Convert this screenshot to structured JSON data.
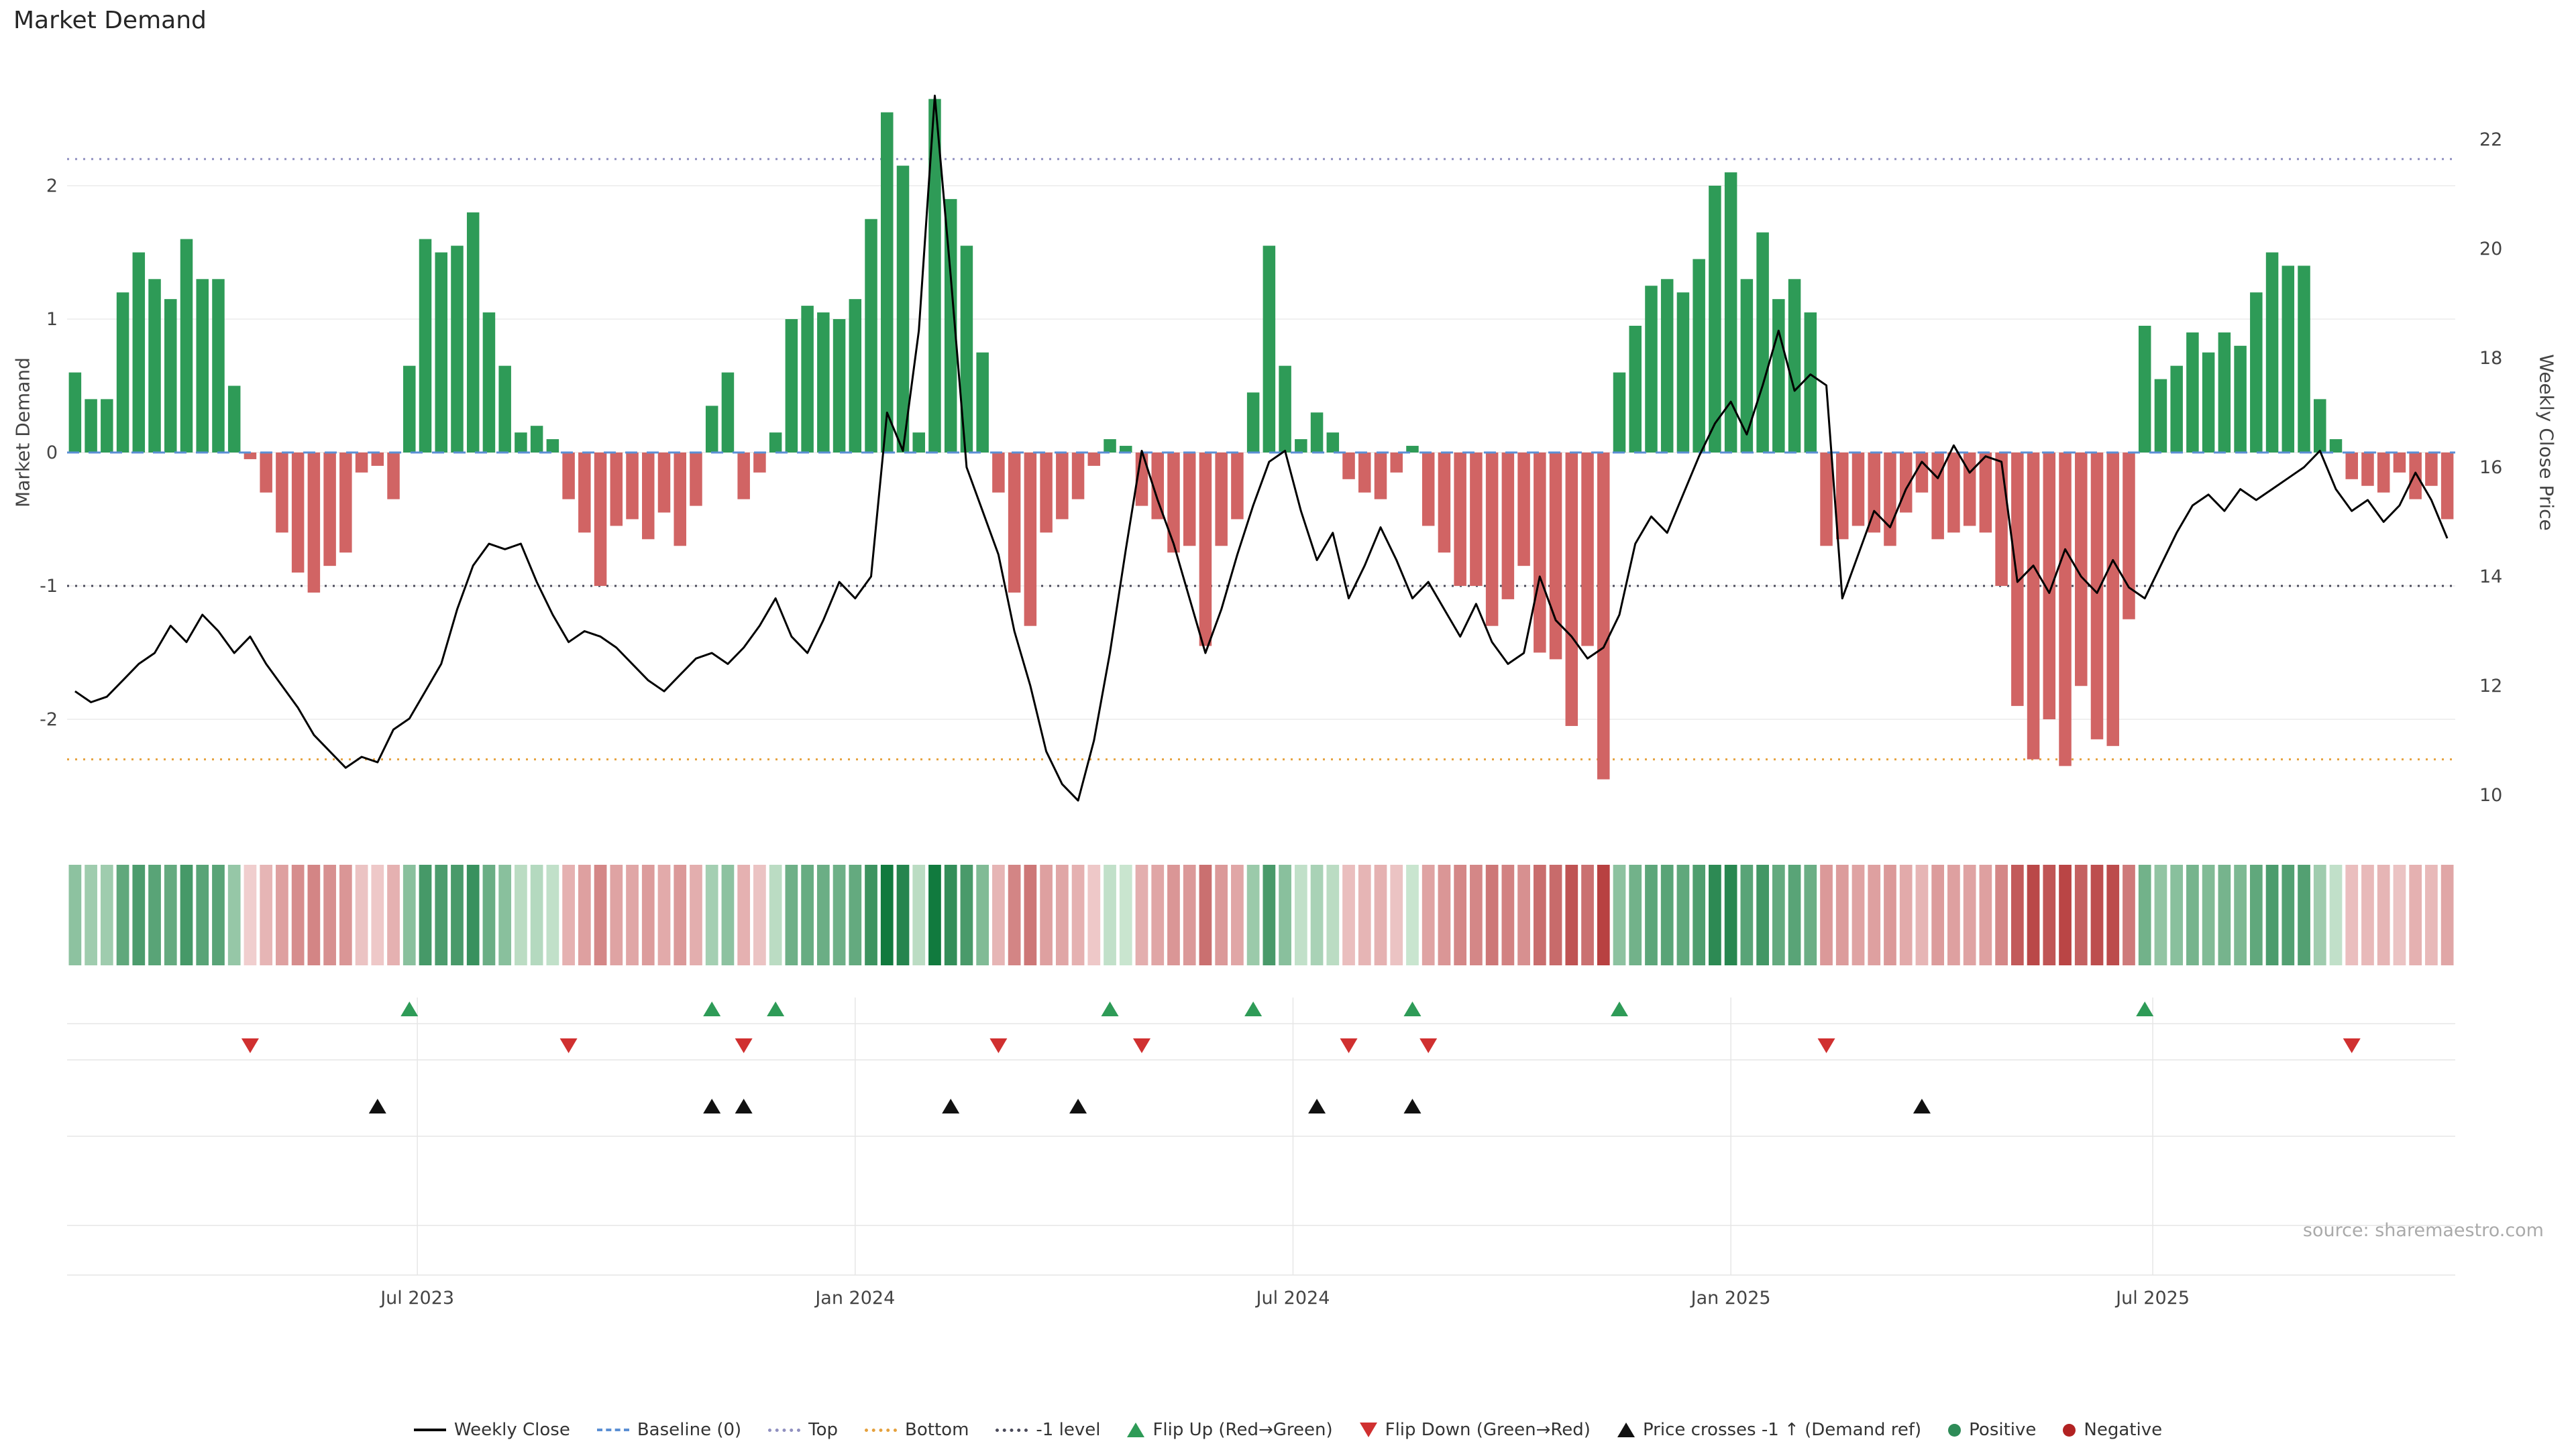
{
  "header": {
    "title": "Market Demand"
  },
  "axes": {
    "left_title": "Market Demand",
    "right_title": "Weekly Close Price"
  },
  "source": "source: sharemaestro.com",
  "colors": {
    "positive_bar": "#2e9b57",
    "negative_bar": "#d16464",
    "price_line": "#000000",
    "baseline": "#5b8fd4",
    "top_line": "#9090c0",
    "bottom_line": "#e5a13d",
    "minus1_line": "#4a4a5a",
    "flip_up": "#2e9b57",
    "flip_down": "#d03030",
    "price_cross": "#111111",
    "grid": "#f0f0f0",
    "marker_grid": "#e6e6e6",
    "tick_text": "#444444"
  },
  "legend": {
    "items": [
      {
        "label": "Weekly Close",
        "symbol": "line",
        "color": "#000000"
      },
      {
        "label": "Baseline (0)",
        "symbol": "line-dashed",
        "color": "#5b8fd4"
      },
      {
        "label": "Top",
        "symbol": "line-dotted",
        "color": "#9090c0"
      },
      {
        "label": "Bottom",
        "symbol": "line-dotted",
        "color": "#e5a13d"
      },
      {
        "label": "-1 level",
        "symbol": "line-dotted",
        "color": "#4a4a5a"
      },
      {
        "label": "Flip Up (Red→Green)",
        "symbol": "triangle-up",
        "color": "#2e9b57"
      },
      {
        "label": "Flip Down (Green→Red)",
        "symbol": "triangle-down",
        "color": "#d03030"
      },
      {
        "label": "Price crosses -1 ↑ (Demand ref)",
        "symbol": "triangle-up",
        "color": "#111111"
      },
      {
        "label": "Positive",
        "symbol": "dot",
        "color": "#2e8b57"
      },
      {
        "label": "Negative",
        "symbol": "dot",
        "color": "#b22222"
      }
    ]
  },
  "chart_data": {
    "type": "bar",
    "title": "Market Demand",
    "left_axis": {
      "label": "Market Demand",
      "ticks": [
        2,
        1,
        0,
        -1,
        -2
      ],
      "range": [
        -2.62,
        2.89
      ]
    },
    "right_axis": {
      "label": "Weekly Close Price",
      "ticks": [
        22,
        20,
        18,
        16,
        14,
        12,
        10
      ],
      "range": [
        9.7,
        23.3
      ]
    },
    "x_axis": {
      "tick_labels": [
        {
          "label": "Jul 2023",
          "index": 21.5
        },
        {
          "label": "Jan 2024",
          "index": 49.0
        },
        {
          "label": "Jul 2024",
          "index": 76.5
        },
        {
          "label": "Jan 2025",
          "index": 104.0
        },
        {
          "label": "Jul 2025",
          "index": 130.5
        }
      ]
    },
    "ref_lines": {
      "baseline": 0,
      "top": 2.2,
      "bottom": -2.3,
      "minus1": -1
    },
    "series": [
      {
        "name": "Market Demand",
        "type": "bar",
        "axis": "left",
        "values": [
          0.6,
          0.4,
          0.4,
          1.2,
          1.5,
          1.3,
          1.15,
          1.6,
          1.3,
          1.3,
          0.5,
          -0.05,
          -0.3,
          -0.6,
          -0.9,
          -1.05,
          -0.85,
          -0.75,
          -0.15,
          -0.1,
          -0.35,
          0.65,
          1.6,
          1.5,
          1.55,
          1.8,
          1.05,
          0.65,
          0.15,
          0.2,
          0.1,
          -0.35,
          -0.6,
          -1.0,
          -0.55,
          -0.5,
          -0.65,
          -0.45,
          -0.7,
          -0.4,
          0.35,
          0.6,
          -0.35,
          -0.15,
          0.15,
          1.0,
          1.1,
          1.05,
          1.0,
          1.15,
          1.75,
          2.55,
          2.15,
          0.15,
          2.65,
          1.9,
          1.55,
          0.75,
          -0.3,
          -1.05,
          -1.3,
          -0.6,
          -0.5,
          -0.35,
          -0.1,
          0.1,
          0.05,
          -0.4,
          -0.5,
          -0.75,
          -0.7,
          -1.45,
          -0.7,
          -0.5,
          0.45,
          1.55,
          0.65,
          0.1,
          0.3,
          0.15,
          -0.2,
          -0.3,
          -0.35,
          -0.15,
          0.05,
          -0.55,
          -0.75,
          -1.0,
          -1.0,
          -1.3,
          -1.1,
          -0.85,
          -1.5,
          -1.55,
          -2.05,
          -1.45,
          -2.45,
          0.6,
          0.95,
          1.25,
          1.3,
          1.2,
          1.45,
          2.0,
          2.1,
          1.3,
          1.65,
          1.15,
          1.3,
          1.05,
          -0.7,
          -0.65,
          -0.55,
          -0.6,
          -0.7,
          -0.45,
          -0.3,
          -0.65,
          -0.6,
          -0.55,
          -0.6,
          -1.0,
          -1.9,
          -2.3,
          -2.0,
          -2.35,
          -1.75,
          -2.15,
          -2.2,
          -1.25,
          0.95,
          0.55,
          0.65,
          0.9,
          0.75,
          0.9,
          0.8,
          1.2,
          1.5,
          1.4,
          1.4,
          0.4,
          0.1,
          -0.2,
          -0.25,
          -0.3,
          -0.15,
          -0.35,
          -0.25,
          -0.5
        ]
      },
      {
        "name": "Weekly Close",
        "type": "line",
        "axis": "right",
        "values": [
          11.9,
          11.7,
          11.8,
          12.1,
          12.4,
          12.6,
          13.1,
          12.8,
          13.3,
          13.0,
          12.6,
          12.9,
          12.4,
          12.0,
          11.6,
          11.1,
          10.8,
          10.5,
          10.7,
          10.6,
          11.2,
          11.4,
          11.9,
          12.4,
          13.4,
          14.2,
          14.6,
          14.5,
          14.6,
          13.9,
          13.3,
          12.8,
          13.0,
          12.9,
          12.7,
          12.4,
          12.1,
          11.9,
          12.2,
          12.5,
          12.6,
          12.4,
          12.7,
          13.1,
          13.6,
          12.9,
          12.6,
          13.2,
          13.9,
          13.6,
          14.0,
          17.0,
          16.3,
          18.5,
          22.8,
          19.5,
          16.0,
          15.2,
          14.4,
          13.0,
          12.0,
          10.8,
          10.2,
          9.9,
          11.0,
          12.6,
          14.5,
          16.3,
          15.4,
          14.6,
          13.6,
          12.6,
          13.4,
          14.4,
          15.3,
          16.1,
          16.3,
          15.2,
          14.3,
          14.8,
          13.6,
          14.2,
          14.9,
          14.3,
          13.6,
          13.9,
          13.4,
          12.9,
          13.5,
          12.8,
          12.4,
          12.6,
          14.0,
          13.2,
          12.9,
          12.5,
          12.7,
          13.3,
          14.6,
          15.1,
          14.8,
          15.5,
          16.2,
          16.8,
          17.2,
          16.6,
          17.5,
          18.5,
          17.4,
          17.7,
          17.5,
          13.6,
          14.4,
          15.2,
          14.9,
          15.6,
          16.1,
          15.8,
          16.4,
          15.9,
          16.2,
          16.1,
          13.9,
          14.2,
          13.7,
          14.5,
          14.0,
          13.7,
          14.3,
          13.8,
          13.6,
          14.2,
          14.8,
          15.3,
          15.5,
          15.2,
          15.6,
          15.4,
          15.6,
          15.8,
          16.0,
          16.3,
          15.6,
          15.2,
          15.4,
          15.0,
          15.3,
          15.9,
          15.4,
          14.7
        ]
      }
    ],
    "markers": {
      "flip_up_indices": [
        21,
        40,
        44,
        65,
        74,
        84,
        97,
        130
      ],
      "flip_down_indices": [
        11,
        31,
        42,
        58,
        67,
        80,
        85,
        110,
        143
      ],
      "price_cross_indices": [
        19,
        40,
        42,
        55,
        63,
        78,
        84,
        116
      ]
    },
    "heatmap": {
      "note": "strip of cells colored by sign and magnitude of Market Demand values"
    }
  }
}
